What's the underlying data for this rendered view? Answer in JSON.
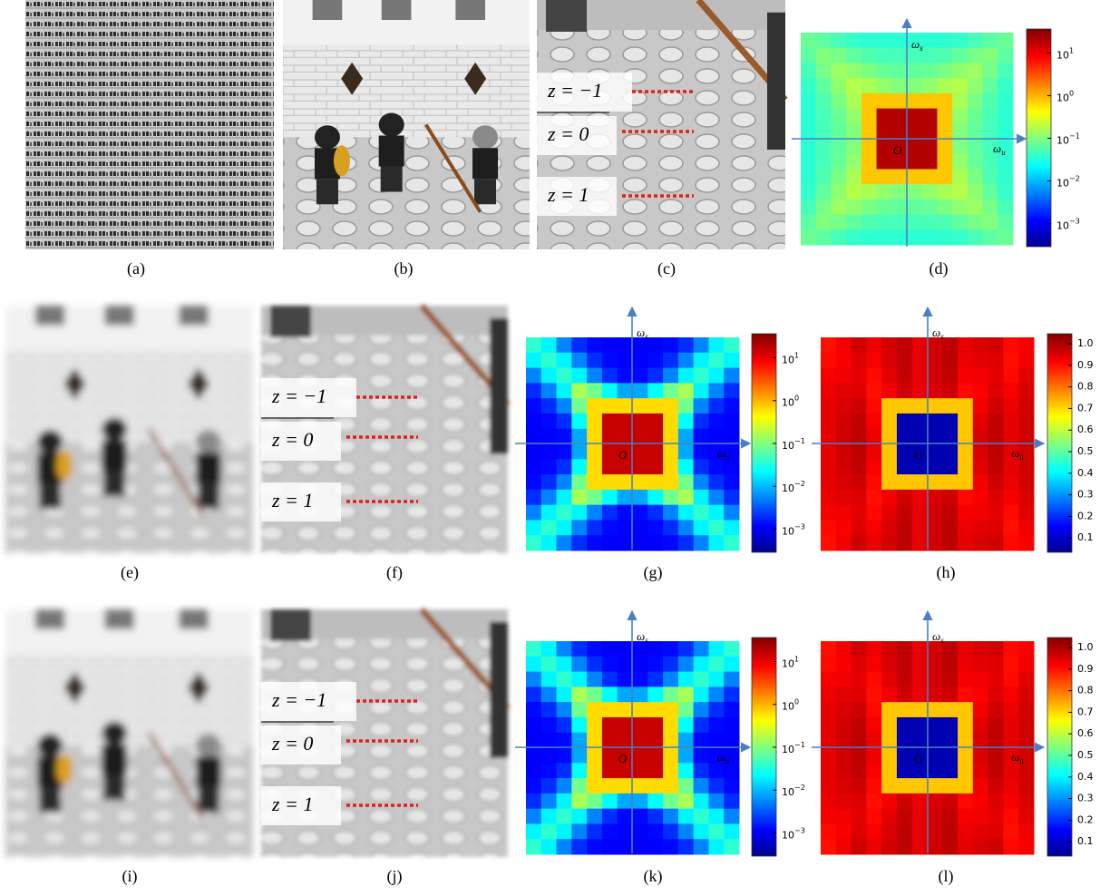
{
  "panels": [
    {
      "caption": "(a)"
    },
    {
      "caption": "(b)"
    },
    {
      "caption": "(c)"
    },
    {
      "caption": "(d)"
    },
    {
      "caption": "(e)"
    },
    {
      "caption": "(f)"
    },
    {
      "caption": "(g)"
    },
    {
      "caption": "(h)"
    },
    {
      "caption": "(i)"
    },
    {
      "caption": "(j)"
    },
    {
      "caption": "(k)"
    },
    {
      "caption": "(l)"
    }
  ],
  "depth_labels": [
    "z = −1",
    "z = 0",
    "z = 1"
  ],
  "axes": {
    "omega": "ω",
    "u": "u",
    "s": "s",
    "origin": "O"
  },
  "colorbars": {
    "log": {
      "base": "10",
      "exponents": [
        "1",
        "0",
        "−1",
        "−2",
        "−3"
      ]
    },
    "linear": [
      "1.0",
      "0.9",
      "0.8",
      "0.7",
      "0.6",
      "0.5",
      "0.4",
      "0.3",
      "0.2",
      "0.1"
    ]
  }
}
